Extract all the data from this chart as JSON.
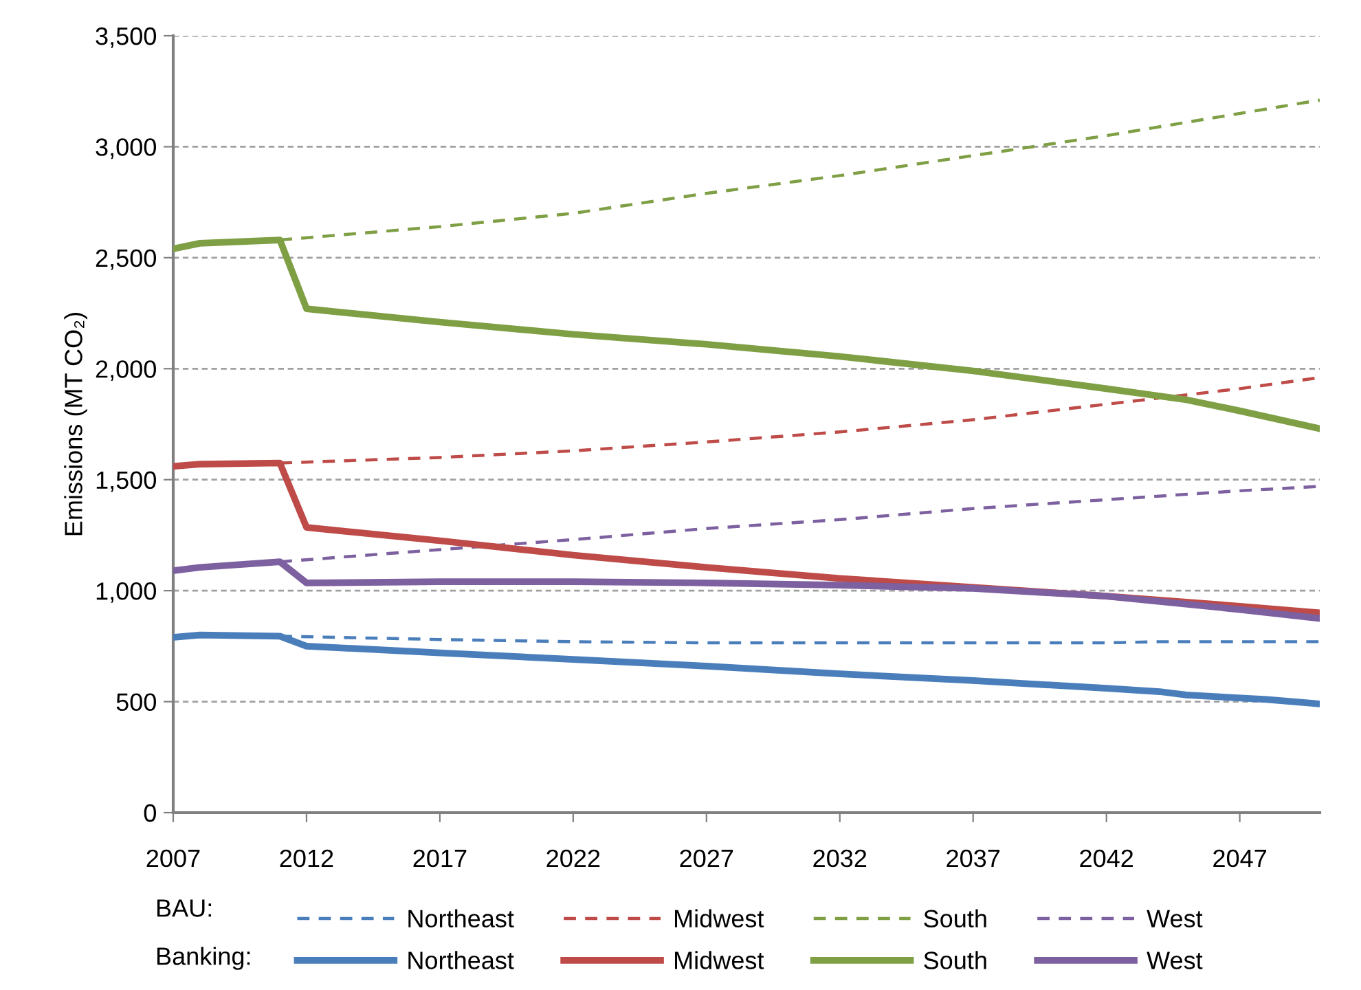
{
  "chart_data": {
    "type": "line",
    "ylabel": "Emissions (MT CO₂)",
    "xlim": [
      2007,
      2050
    ],
    "xticks": [
      2007,
      2012,
      2017,
      2022,
      2027,
      2032,
      2037,
      2042,
      2047
    ],
    "ylim": [
      0,
      3500
    ],
    "yticks": [
      {
        "value": 0,
        "label": "0"
      },
      {
        "value": 500,
        "label": "500"
      },
      {
        "value": 1000,
        "label": "1,000"
      },
      {
        "value": 1500,
        "label": "1,500"
      },
      {
        "value": 2000,
        "label": "2,000"
      },
      {
        "value": 2500,
        "label": "2,500"
      },
      {
        "value": 3000,
        "label": "3,000"
      },
      {
        "value": 3500,
        "label": "3,500"
      }
    ],
    "grid": "y",
    "legend": "bottom",
    "marker": "none",
    "annotations": [
      "BAU:",
      "Banking:"
    ],
    "series": [
      {
        "name": "Northeast",
        "color": "#4a7ebb",
        "line_style": "dashed",
        "x": [
          2011,
          2017,
          2022,
          2027,
          2032,
          2037,
          2042,
          2044,
          2050
        ],
        "values": [
          795,
          780,
          770,
          765,
          765,
          765,
          765,
          770,
          770
        ]
      },
      {
        "name": "Midwest",
        "color": "#be4b48",
        "line_style": "dashed",
        "x": [
          2011,
          2017,
          2022,
          2027,
          2032,
          2037,
          2042,
          2047,
          2050
        ],
        "values": [
          1575,
          1600,
          1630,
          1670,
          1715,
          1770,
          1840,
          1910,
          1960
        ]
      },
      {
        "name": "South",
        "color": "#7f9f45",
        "line_style": "dashed",
        "x": [
          2011,
          2017,
          2022,
          2027,
          2032,
          2037,
          2042,
          2045,
          2050
        ],
        "values": [
          2580,
          2640,
          2700,
          2790,
          2870,
          2960,
          3050,
          3110,
          3210
        ]
      },
      {
        "name": "West",
        "color": "#7d60a0",
        "line_style": "dashed",
        "x": [
          2011,
          2017,
          2022,
          2027,
          2032,
          2037,
          2042,
          2047,
          2050
        ],
        "values": [
          1130,
          1185,
          1230,
          1280,
          1320,
          1370,
          1410,
          1450,
          1470
        ]
      },
      {
        "name": "Northeast",
        "color": "#4a7ebb",
        "line_style": "solid",
        "x": [
          2007,
          2008,
          2011,
          2012,
          2017,
          2022,
          2027,
          2032,
          2037,
          2042,
          2044,
          2045,
          2048,
          2050
        ],
        "values": [
          790,
          800,
          795,
          750,
          720,
          690,
          660,
          625,
          595,
          560,
          545,
          530,
          510,
          490
        ]
      },
      {
        "name": "Midwest",
        "color": "#be4b48",
        "line_style": "solid",
        "x": [
          2007,
          2008,
          2011,
          2012,
          2017,
          2022,
          2027,
          2032,
          2037,
          2042,
          2047,
          2050
        ],
        "values": [
          1560,
          1570,
          1575,
          1285,
          1225,
          1160,
          1105,
          1055,
          1015,
          975,
          930,
          900
        ]
      },
      {
        "name": "South",
        "color": "#7f9f45",
        "line_style": "solid",
        "x": [
          2007,
          2008,
          2011,
          2012,
          2017,
          2022,
          2027,
          2032,
          2037,
          2042,
          2045,
          2047,
          2050
        ],
        "values": [
          2540,
          2565,
          2580,
          2270,
          2210,
          2155,
          2110,
          2055,
          1990,
          1910,
          1860,
          1810,
          1730
        ]
      },
      {
        "name": "West",
        "color": "#7d60a0",
        "line_style": "solid",
        "x": [
          2007,
          2008,
          2011,
          2012,
          2017,
          2022,
          2027,
          2032,
          2037,
          2042,
          2047,
          2050
        ],
        "values": [
          1090,
          1105,
          1130,
          1035,
          1040,
          1040,
          1035,
          1025,
          1010,
          975,
          915,
          875
        ]
      }
    ]
  }
}
